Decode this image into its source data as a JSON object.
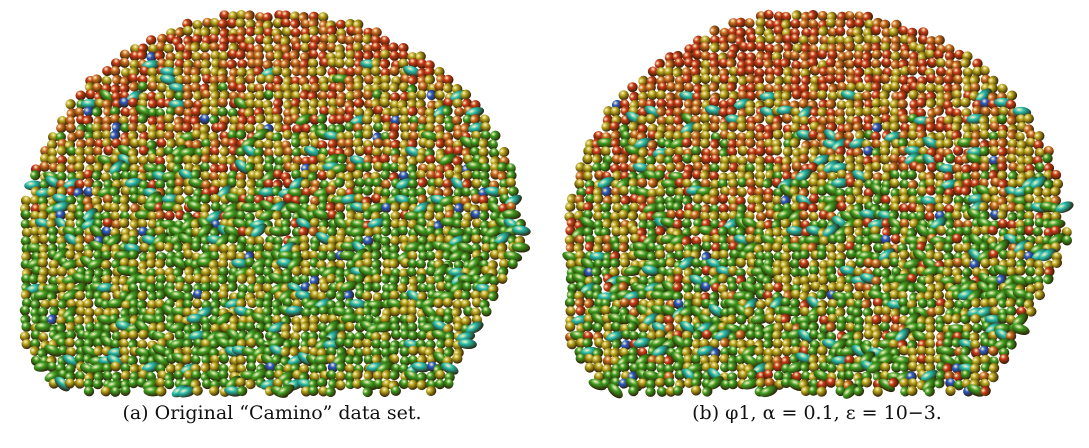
{
  "figure": {
    "panels": [
      {
        "id": "a",
        "caption": "(a) Original “Camino” data set.",
        "palette": {
          "red": "#c83a17",
          "orange": "#c96a1e",
          "yellow": "#b8a51c",
          "green": "#3d9b1f",
          "cyan": "#25b9a8",
          "blue": "#2a5bc6"
        }
      },
      {
        "id": "b",
        "caption": "(b) φ1, α = 0.1, ε = 10−3.",
        "palette": {
          "red": "#c83a17",
          "orange": "#c96a1e",
          "yellow": "#b8a51c",
          "green": "#3d9b1f",
          "cyan": "#25b9a8",
          "blue": "#2a5bc6"
        }
      }
    ]
  }
}
